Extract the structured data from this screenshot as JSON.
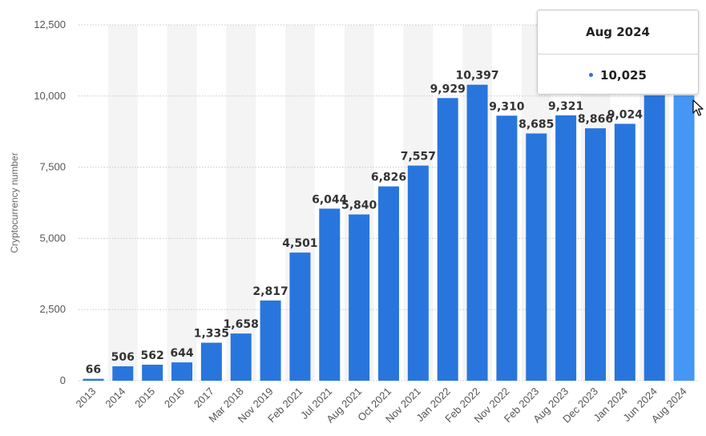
{
  "chart_data": {
    "type": "bar",
    "title": "",
    "xlabel": "",
    "ylabel": "Cryptocurrency number",
    "ylim": [
      0,
      12500
    ],
    "yticks": [
      0,
      2500,
      5000,
      7500,
      10000,
      12500
    ],
    "ytick_labels": [
      "0",
      "2,500",
      "5,000",
      "7,500",
      "10,000",
      "12,500"
    ],
    "grid": "horizontal dotted",
    "categories": [
      "2013",
      "2014",
      "2015",
      "2016",
      "2017",
      "Mar 2018",
      "Nov 2019",
      "Feb 2021",
      "Jul 2021",
      "Aug 2021",
      "Oct 2021",
      "Nov 2021",
      "Jan 2022",
      "Feb 2022",
      "Nov 2022",
      "Feb 2023",
      "Aug 2023",
      "Dec 2023",
      "Jan 2024",
      "Jun 2024",
      "Aug 2024"
    ],
    "values": [
      66,
      506,
      562,
      644,
      1335,
      1658,
      2817,
      4501,
      6044,
      5840,
      6826,
      7557,
      9929,
      10397,
      9310,
      8685,
      9321,
      8866,
      9024,
      10025,
      10025
    ],
    "value_labels": [
      "66",
      "506",
      "562",
      "644",
      "1,335",
      "1,658",
      "2,817",
      "4,501",
      "6,044",
      "5,840",
      "6,826",
      "7,557",
      "9,929",
      "10,397",
      "9,310",
      "8,685",
      "9,321",
      "8,866",
      "9,024",
      "",
      ""
    ],
    "highlighted_index": 20,
    "colors": {
      "bar": "#2876dd",
      "bar_highlight": "#4596f5",
      "band": "#f4f4f4",
      "grid": "#c8c8c8"
    }
  },
  "tooltip": {
    "title": "Aug 2024",
    "value": "10,025",
    "dot_color": "#2876dd"
  }
}
